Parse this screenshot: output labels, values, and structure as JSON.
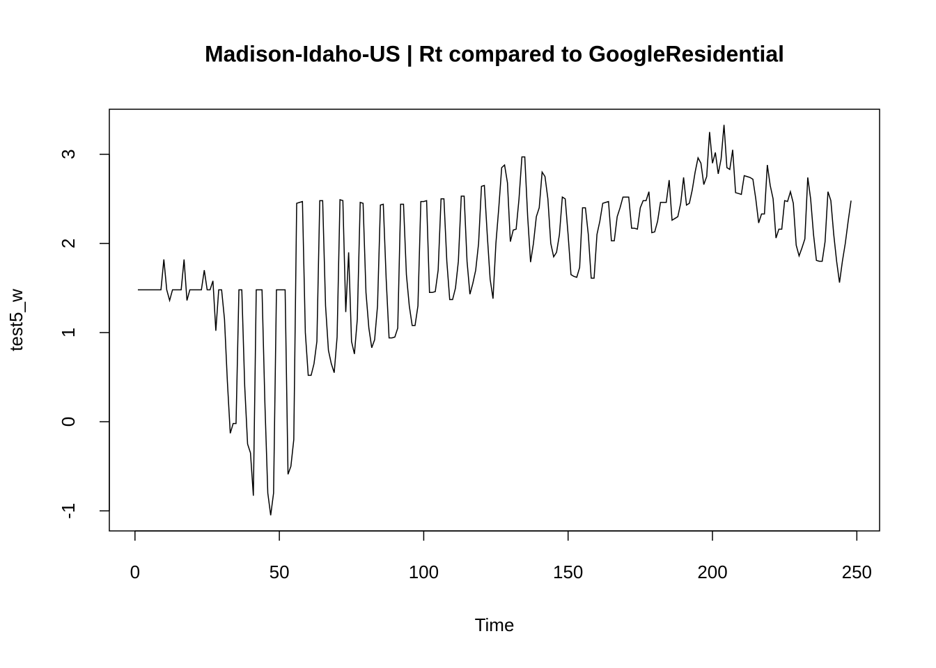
{
  "chart_data": {
    "type": "line",
    "title": "Madison-Idaho-US | Rt compared to GoogleResidential",
    "x_label": "Time",
    "y_label": "test5_w",
    "x": [
      1,
      2,
      3,
      4,
      5,
      6,
      7,
      8,
      9,
      10,
      11,
      12,
      13,
      14,
      15,
      16,
      17,
      18,
      19,
      20,
      21,
      22,
      23,
      24,
      25,
      26,
      27,
      28,
      29,
      30,
      31,
      32,
      33,
      34,
      35,
      36,
      37,
      38,
      39,
      40,
      41,
      42,
      43,
      44,
      45,
      46,
      47,
      48,
      49,
      50,
      51,
      52,
      53,
      54,
      55,
      56,
      57,
      58,
      59,
      60,
      61,
      62,
      63,
      64,
      65,
      66,
      67,
      68,
      69,
      70,
      71,
      72,
      73,
      74,
      75,
      76,
      77,
      78,
      79,
      80,
      81,
      82,
      83,
      84,
      85,
      86,
      87,
      88,
      89,
      90,
      91,
      92,
      93,
      94,
      95,
      96,
      97,
      98,
      99,
      100,
      101,
      102,
      103,
      104,
      105,
      106,
      107,
      108,
      109,
      110,
      111,
      112,
      113,
      114,
      115,
      116,
      117,
      118,
      119,
      120,
      121,
      122,
      123,
      124,
      125,
      126,
      127,
      128,
      129,
      130,
      131,
      132,
      133,
      134,
      135,
      136,
      137,
      138,
      139,
      140,
      141,
      142,
      143,
      144,
      145,
      146,
      147,
      148,
      149,
      150,
      151,
      152,
      153,
      154,
      155,
      156,
      157,
      158,
      159,
      160,
      161,
      162,
      163,
      164,
      165,
      166,
      167,
      168,
      169,
      170,
      171,
      172,
      173,
      174,
      175,
      176,
      177,
      178,
      179,
      180,
      181,
      182,
      183,
      184,
      185,
      186,
      187,
      188,
      189,
      190,
      191,
      192,
      193,
      194,
      195,
      196,
      197,
      198,
      199,
      200,
      201,
      202,
      203,
      204,
      205,
      206,
      207,
      208,
      209,
      210,
      211,
      212,
      213,
      214,
      215,
      216,
      217,
      218,
      219,
      220,
      221,
      222,
      223,
      224,
      225,
      226,
      227,
      228,
      229,
      230,
      231,
      232,
      233,
      234,
      235,
      236,
      237,
      238,
      239,
      240,
      241,
      242,
      243,
      244,
      245,
      246,
      247,
      248
    ],
    "series": [
      {
        "name": "test5_w",
        "color": "#000000",
        "values": [
          1.48,
          1.48,
          1.48,
          1.48,
          1.48,
          1.48,
          1.48,
          1.48,
          1.48,
          1.82,
          1.48,
          1.36,
          1.48,
          1.48,
          1.48,
          1.48,
          1.82,
          1.36,
          1.48,
          1.48,
          1.48,
          1.48,
          1.48,
          1.7,
          1.48,
          1.48,
          1.58,
          1.02,
          1.48,
          1.48,
          1.15,
          0.45,
          -0.13,
          -0.02,
          -0.02,
          1.48,
          1.48,
          0.4,
          -0.25,
          -0.35,
          -0.83,
          1.48,
          1.48,
          1.48,
          0.2,
          -0.8,
          -1.05,
          -0.8,
          1.48,
          1.48,
          1.48,
          1.48,
          -0.59,
          -0.5,
          -0.2,
          2.45,
          2.46,
          2.47,
          1.0,
          0.52,
          0.52,
          0.65,
          0.9,
          2.48,
          2.48,
          1.3,
          0.8,
          0.65,
          0.55,
          0.95,
          2.49,
          2.48,
          1.23,
          1.9,
          0.9,
          0.76,
          1.15,
          2.46,
          2.45,
          1.45,
          1.05,
          0.83,
          0.92,
          1.3,
          2.43,
          2.44,
          1.6,
          0.94,
          0.94,
          0.95,
          1.05,
          2.44,
          2.44,
          1.65,
          1.3,
          1.08,
          1.08,
          1.3,
          2.47,
          2.47,
          2.48,
          1.45,
          1.45,
          1.46,
          1.7,
          2.5,
          2.5,
          1.8,
          1.37,
          1.37,
          1.5,
          1.8,
          2.53,
          2.53,
          1.8,
          1.43,
          1.55,
          1.7,
          2.0,
          2.64,
          2.65,
          2.1,
          1.6,
          1.38,
          2.0,
          2.4,
          2.85,
          2.88,
          2.68,
          2.02,
          2.15,
          2.16,
          2.5,
          2.97,
          2.97,
          2.3,
          1.79,
          2.0,
          2.3,
          2.4,
          2.8,
          2.75,
          2.5,
          2.0,
          1.85,
          1.9,
          2.1,
          2.52,
          2.5,
          2.1,
          1.65,
          1.63,
          1.62,
          1.73,
          2.4,
          2.4,
          2.1,
          1.61,
          1.61,
          2.1,
          2.25,
          2.45,
          2.46,
          2.47,
          2.03,
          2.03,
          2.3,
          2.4,
          2.52,
          2.52,
          2.52,
          2.17,
          2.17,
          2.16,
          2.4,
          2.48,
          2.48,
          2.58,
          2.12,
          2.13,
          2.25,
          2.46,
          2.46,
          2.46,
          2.71,
          2.26,
          2.28,
          2.3,
          2.45,
          2.74,
          2.43,
          2.45,
          2.6,
          2.8,
          2.96,
          2.9,
          2.66,
          2.75,
          3.25,
          2.9,
          3.02,
          2.78,
          2.95,
          3.33,
          2.85,
          2.83,
          3.05,
          2.57,
          2.56,
          2.55,
          2.76,
          2.75,
          2.74,
          2.72,
          2.5,
          2.23,
          2.33,
          2.33,
          2.88,
          2.65,
          2.5,
          2.06,
          2.16,
          2.16,
          2.48,
          2.47,
          2.58,
          2.45,
          1.98,
          1.86,
          1.95,
          2.05,
          2.74,
          2.5,
          2.1,
          1.81,
          1.8,
          1.8,
          2.02,
          2.58,
          2.48,
          2.1,
          1.8,
          1.56,
          1.8,
          2.0,
          2.25,
          2.48
        ]
      }
    ],
    "xlim": [
      -8.88,
      257.88
    ],
    "xticks": [
      0,
      50,
      100,
      150,
      200,
      250
    ],
    "ylim": [
      -1.225,
      3.505
    ],
    "yticks": [
      -1,
      0,
      1,
      2,
      3
    ],
    "grid": false
  }
}
